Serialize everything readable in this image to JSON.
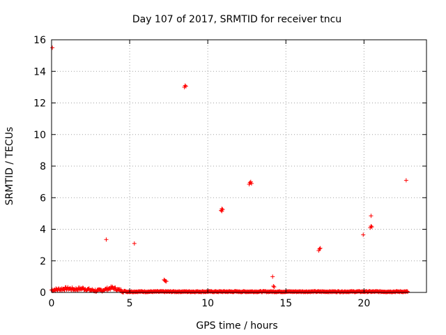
{
  "chart_data": {
    "type": "scatter",
    "title": "Day 107 of 2017, SRMTID for receiver tncu",
    "xlabel": "GPS time / hours",
    "ylabel": "SRMTID / TECUs",
    "xlim": [
      0,
      24
    ],
    "ylim": [
      0,
      16
    ],
    "x_ticks": [
      0,
      5,
      10,
      15,
      20
    ],
    "y_ticks": [
      0,
      2,
      4,
      6,
      8,
      10,
      12,
      14,
      16
    ],
    "grid": true,
    "marker": "+",
    "color": "#ff0000",
    "series": [
      {
        "points": [
          [
            0.05,
            15.5
          ],
          [
            3.5,
            3.35
          ],
          [
            5.3,
            3.1
          ],
          [
            7.2,
            0.8
          ],
          [
            7.25,
            0.75
          ],
          [
            7.3,
            0.72
          ],
          [
            7.35,
            0.7
          ],
          [
            8.5,
            13.0
          ],
          [
            8.55,
            13.1
          ],
          [
            8.6,
            13.05
          ],
          [
            10.85,
            5.2
          ],
          [
            10.9,
            5.3
          ],
          [
            10.95,
            5.25
          ],
          [
            10.9,
            5.15
          ],
          [
            12.65,
            6.85
          ],
          [
            12.7,
            6.95
          ],
          [
            12.75,
            7.0
          ],
          [
            12.8,
            6.9
          ],
          [
            14.15,
            1.0
          ],
          [
            14.2,
            0.4
          ],
          [
            14.25,
            0.35
          ],
          [
            17.1,
            2.65
          ],
          [
            17.15,
            2.75
          ],
          [
            17.2,
            2.8
          ],
          [
            19.95,
            3.65
          ],
          [
            20.4,
            4.1
          ],
          [
            20.45,
            4.2
          ],
          [
            20.5,
            4.15
          ],
          [
            20.45,
            4.85
          ],
          [
            22.7,
            7.1
          ]
        ],
        "baseline": {
          "x_start": 0.0,
          "x_end": 22.8,
          "typical_value": 0.05,
          "early_values": [
            [
              0.0,
              0.15
            ],
            [
              0.5,
              0.2
            ],
            [
              1.0,
              0.25
            ],
            [
              1.5,
              0.2
            ],
            [
              2.0,
              0.25
            ],
            [
              2.5,
              0.15
            ],
            [
              3.0,
              0.1
            ],
            [
              3.5,
              0.2
            ],
            [
              3.9,
              0.3
            ],
            [
              4.3,
              0.15
            ],
            [
              4.8,
              0.05
            ]
          ]
        }
      }
    ]
  }
}
